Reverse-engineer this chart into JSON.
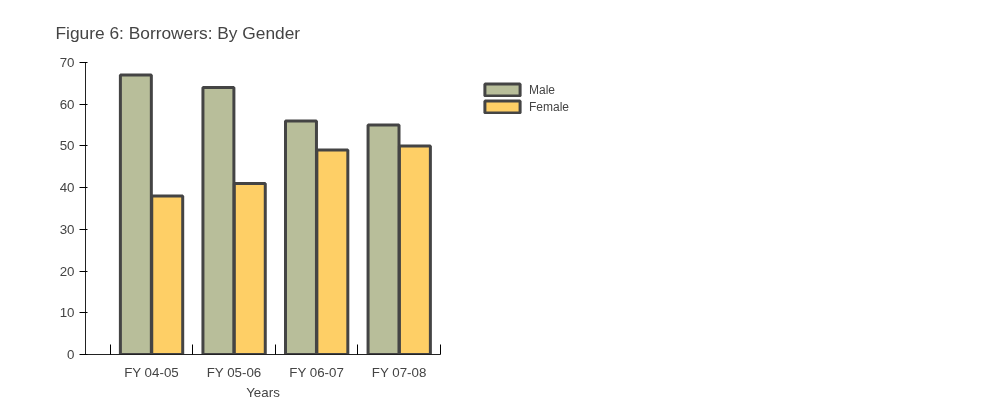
{
  "chart_data": {
    "type": "bar",
    "title": "Figure 6: Borrowers: By Gender",
    "xlabel": "Years",
    "categories": [
      "FY 04-05",
      "FY 05-06",
      "FY 06-07",
      "FY 07-08"
    ],
    "series": [
      {
        "name": "Male",
        "color": "#b8be9a",
        "values": [
          67,
          64,
          56,
          55
        ]
      },
      {
        "name": "Female",
        "color": "#fecf66",
        "values": [
          38,
          41,
          49,
          50
        ]
      }
    ],
    "ylim": [
      0,
      70
    ],
    "yticks": [
      0,
      10,
      20,
      30,
      40,
      50,
      60,
      70
    ],
    "grid": false,
    "legend": "top right"
  }
}
